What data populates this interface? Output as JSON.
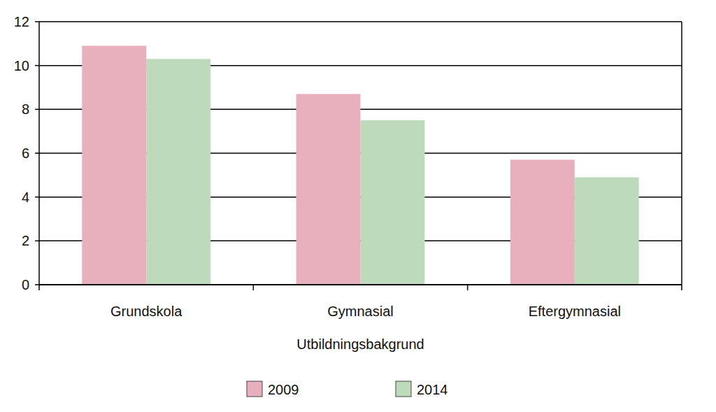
{
  "chart_data": {
    "type": "bar",
    "categories": [
      "Grundskola",
      "Gymnasial",
      "Eftergymnasial"
    ],
    "x_label": "Utbildningsbakgrund",
    "series": [
      {
        "name": "2009",
        "color": "#e8b0bc",
        "values": [
          10.9,
          8.7,
          5.7
        ]
      },
      {
        "name": "2014",
        "color": "#bddbbb",
        "values": [
          10.3,
          7.5,
          4.9
        ]
      }
    ],
    "ylim": [
      0,
      12
    ],
    "yticks": [
      0,
      2,
      4,
      6,
      8,
      10,
      12
    ],
    "grid": true,
    "legend": "bottom"
  }
}
